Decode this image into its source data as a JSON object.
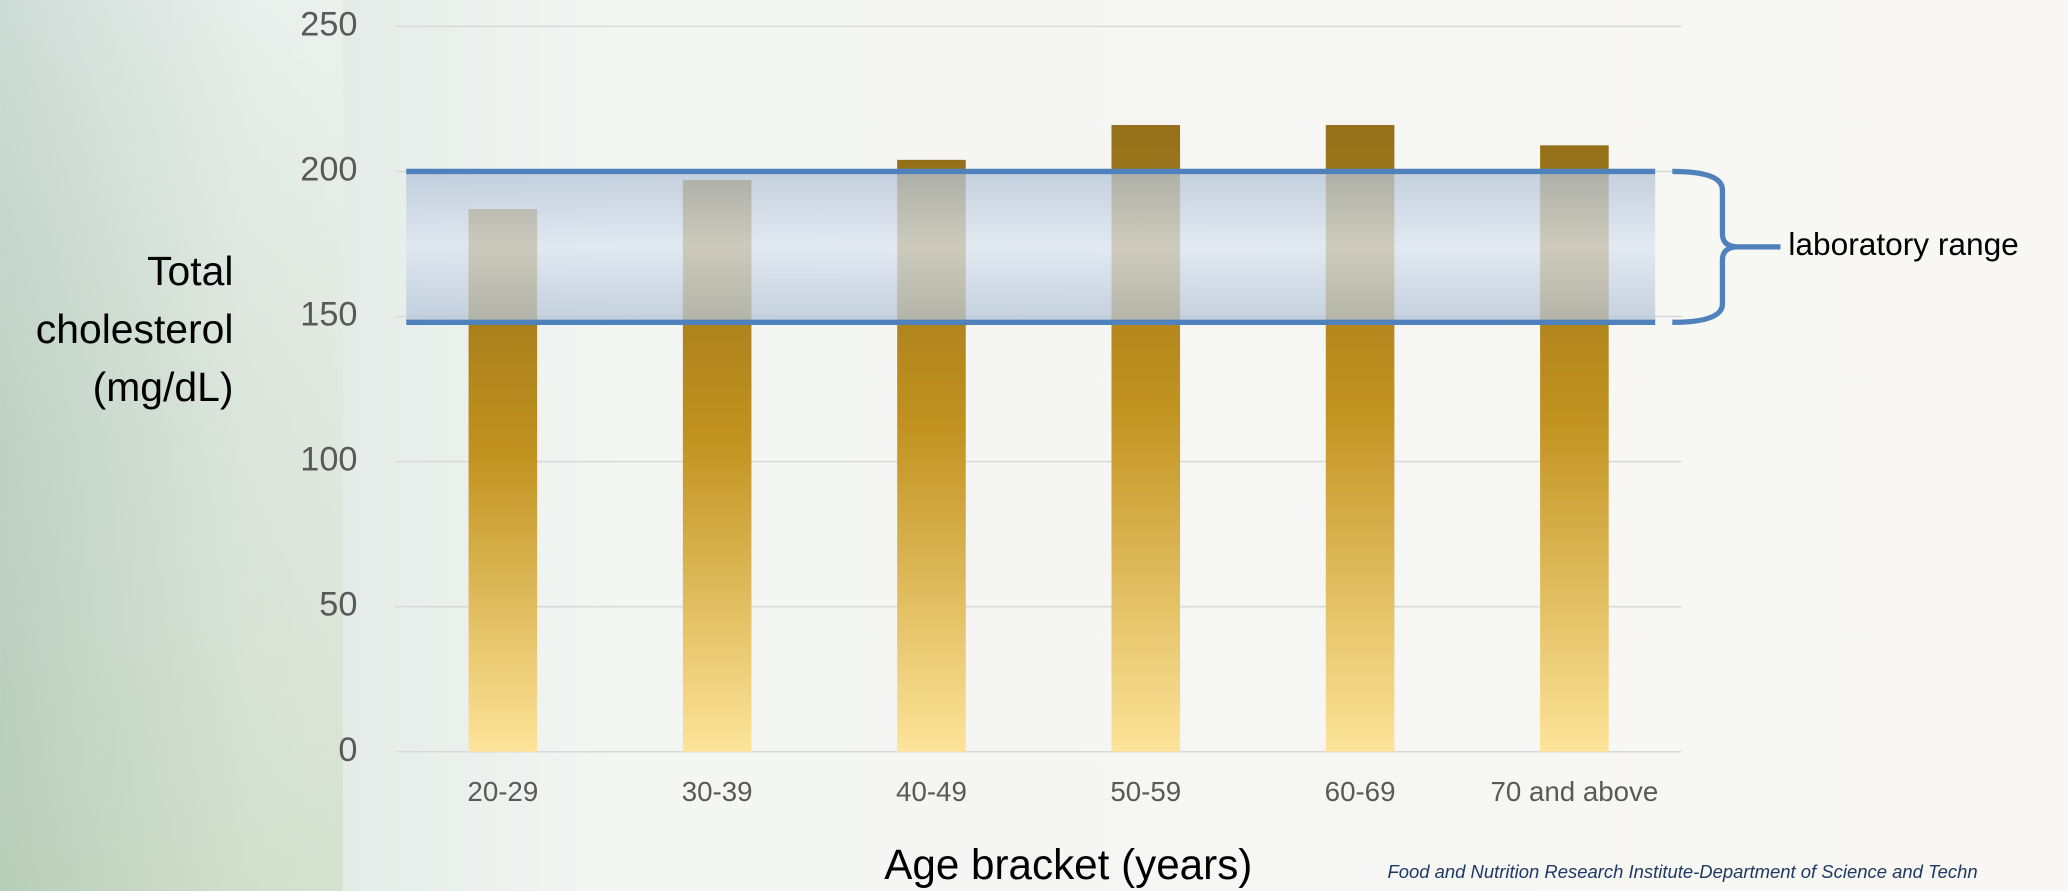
{
  "chart_data": {
    "type": "bar",
    "categories": [
      "20-29",
      "30-39",
      "40-49",
      "50-59",
      "60-69",
      "70 and above"
    ],
    "values": [
      187,
      197,
      204,
      216,
      216,
      209
    ],
    "color": "#c1921f",
    "ylim": [
      0,
      250
    ],
    "yticks": [
      0,
      50,
      100,
      150,
      200,
      250
    ],
    "grid": true,
    "xlabel": "Age bracket (years)",
    "ylabel": [
      "Total",
      "cholesterol",
      "(mg/dL)"
    ],
    "range_band": {
      "label": "laboratory range",
      "values": [
        148,
        200
      ],
      "color": "#4f81bd"
    },
    "source": "Food and Nutrition Research Institute-Department of Science and Techn"
  }
}
